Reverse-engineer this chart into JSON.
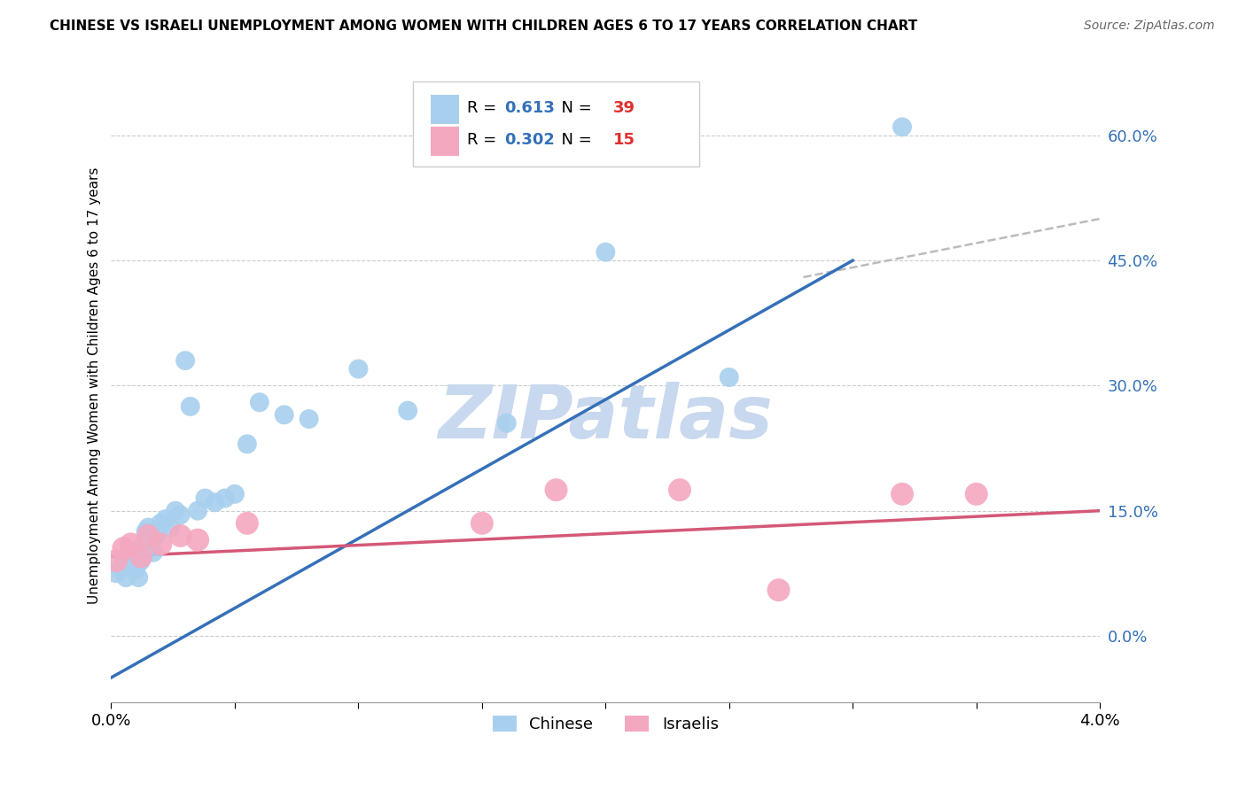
{
  "title": "CHINESE VS ISRAELI UNEMPLOYMENT AMONG WOMEN WITH CHILDREN AGES 6 TO 17 YEARS CORRELATION CHART",
  "source": "Source: ZipAtlas.com",
  "ylabel": "Unemployment Among Women with Children Ages 6 to 17 years",
  "legend_label1": "Chinese",
  "legend_label2": "Israelis",
  "R1": 0.613,
  "N1": 39,
  "R2": 0.302,
  "N2": 15,
  "xlim": [
    0.0,
    4.0
  ],
  "ylim": [
    -8.0,
    68.0
  ],
  "x_ticks": [
    0.0,
    0.5,
    1.0,
    1.5,
    2.0,
    2.5,
    3.0,
    3.5,
    4.0
  ],
  "y_ticks": [
    0.0,
    15.0,
    30.0,
    45.0,
    60.0
  ],
  "color_chinese": "#A8D0EE",
  "color_israeli": "#F4A8C0",
  "color_line_chinese": "#3570B8",
  "color_line_israeli": "#D45878",
  "color_dashed": "#BBBBBB",
  "watermark_color": "#C8D8EE",
  "chinese_x": [
    0.02,
    0.04,
    0.05,
    0.06,
    0.07,
    0.08,
    0.09,
    0.1,
    0.11,
    0.12,
    0.13,
    0.14,
    0.15,
    0.16,
    0.17,
    0.18,
    0.19,
    0.2,
    0.22,
    0.24,
    0.26,
    0.28,
    0.3,
    0.32,
    0.35,
    0.38,
    0.42,
    0.46,
    0.5,
    0.55,
    0.6,
    0.7,
    0.8,
    1.0,
    1.2,
    1.6,
    2.0,
    2.5,
    3.2
  ],
  "chinese_y": [
    7.5,
    8.0,
    9.0,
    7.0,
    8.5,
    9.5,
    10.0,
    8.0,
    7.0,
    9.0,
    11.0,
    12.5,
    13.0,
    11.5,
    10.0,
    12.0,
    12.5,
    13.5,
    14.0,
    13.0,
    15.0,
    14.5,
    33.0,
    27.5,
    15.0,
    16.5,
    16.0,
    16.5,
    17.0,
    23.0,
    28.0,
    26.5,
    26.0,
    32.0,
    27.0,
    25.5,
    46.0,
    31.0,
    61.0
  ],
  "israeli_x": [
    0.02,
    0.05,
    0.08,
    0.12,
    0.15,
    0.2,
    0.28,
    0.35,
    0.55,
    1.5,
    1.8,
    2.3,
    2.7,
    3.2,
    3.5
  ],
  "israeli_y": [
    9.0,
    10.5,
    11.0,
    9.5,
    12.0,
    11.0,
    12.0,
    11.5,
    13.5,
    13.5,
    17.5,
    17.5,
    5.5,
    17.0,
    17.0
  ],
  "blue_line_x": [
    0.0,
    3.0
  ],
  "blue_line_y": [
    -5.0,
    45.0
  ],
  "pink_line_x": [
    0.0,
    4.0
  ],
  "pink_line_y": [
    9.5,
    15.0
  ],
  "dash_line_x": [
    2.8,
    4.0
  ],
  "dash_line_y": [
    43.0,
    50.0
  ]
}
